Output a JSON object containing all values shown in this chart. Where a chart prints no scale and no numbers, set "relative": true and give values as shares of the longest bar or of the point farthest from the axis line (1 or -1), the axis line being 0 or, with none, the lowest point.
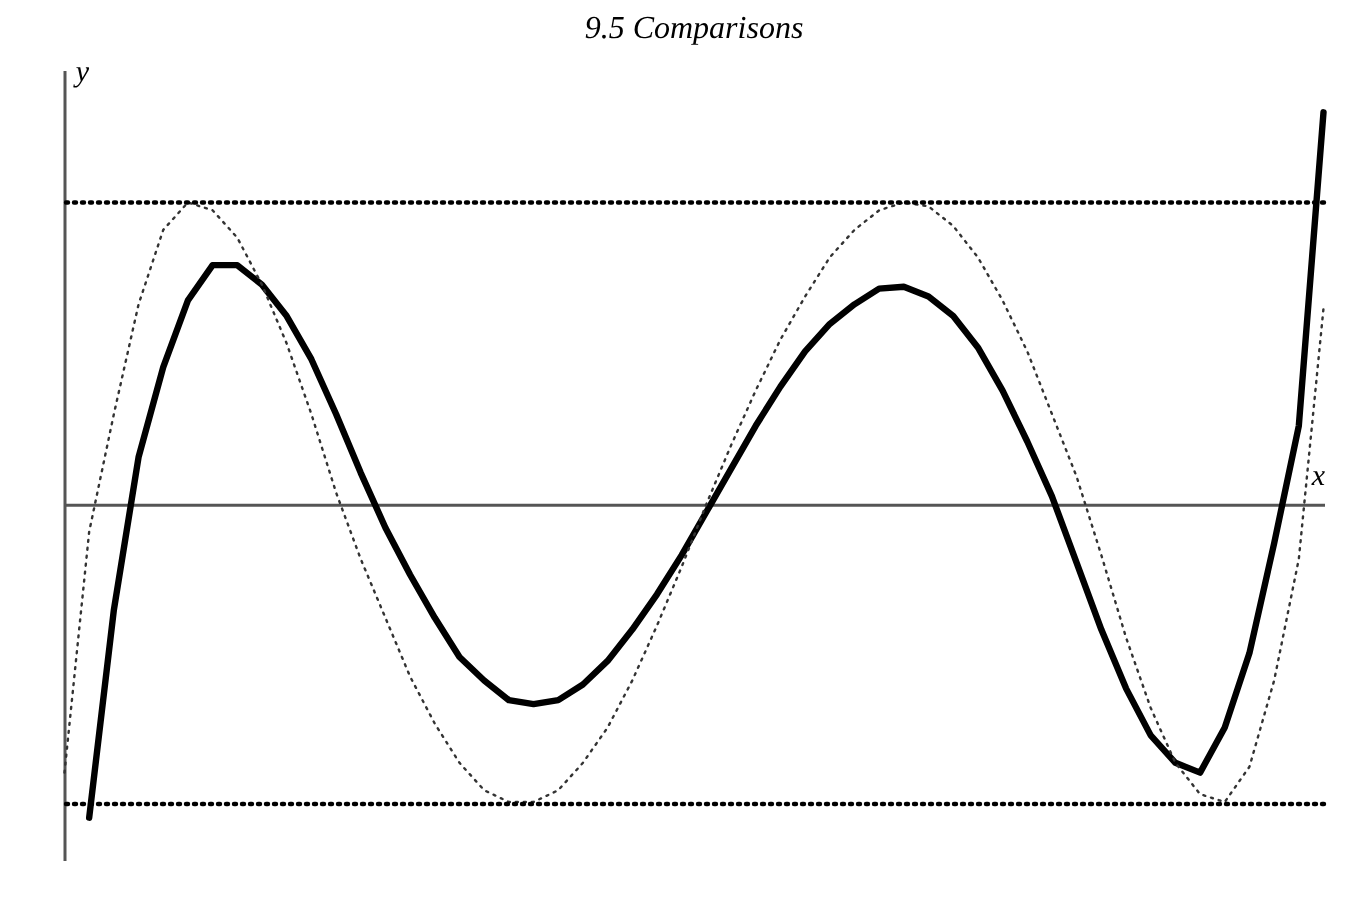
{
  "chart_data": {
    "type": "line",
    "title": "9.5 Comparisons",
    "xlabel": "x",
    "ylabel": "y",
    "relative": true,
    "grid": false,
    "marker": "none",
    "categories": [
      null,
      null,
      null,
      null,
      null,
      null,
      null,
      null,
      null,
      null,
      null,
      null,
      null,
      null,
      null,
      null,
      null,
      null,
      null,
      null,
      null,
      null,
      null,
      null,
      null,
      null,
      null,
      null,
      null,
      null,
      null,
      null,
      null,
      null,
      null,
      null,
      null,
      null,
      null,
      null,
      null,
      null,
      null,
      null,
      null,
      null,
      null,
      null,
      null,
      null,
      null,
      null
    ],
    "series": [
      {
        "color": "#000000",
        "line_style": "solid",
        "values": [
          null,
          -0.8,
          -0.27,
          0.12,
          0.35,
          0.52,
          0.61,
          0.61,
          0.56,
          0.48,
          0.37,
          0.23,
          0.08,
          -0.06,
          -0.18,
          -0.29,
          -0.39,
          -0.45,
          -0.5,
          -0.51,
          -0.5,
          -0.46,
          -0.4,
          -0.32,
          -0.23,
          -0.13,
          -0.02,
          0.09,
          0.2,
          0.3,
          0.39,
          0.46,
          0.51,
          0.55,
          0.555,
          0.53,
          0.48,
          0.4,
          0.29,
          0.16,
          0.02,
          -0.15,
          -0.32,
          -0.47,
          -0.59,
          -0.66,
          -0.685,
          -0.57,
          -0.38,
          -0.1,
          0.2,
          1.0
        ]
      },
      {
        "color": "#333333",
        "line_style": "dotted",
        "values": [
          -0.685,
          -0.07,
          0.23,
          0.51,
          0.7,
          0.77,
          0.75,
          0.68,
          0.56,
          0.41,
          0.23,
          0.03,
          -0.14,
          -0.29,
          -0.44,
          -0.56,
          -0.66,
          -0.73,
          -0.76,
          -0.76,
          -0.73,
          -0.66,
          -0.57,
          -0.45,
          -0.31,
          -0.16,
          0,
          0.15,
          0.29,
          0.42,
          0.53,
          0.63,
          0.7,
          0.75,
          0.77,
          0.76,
          0.71,
          0.63,
          0.52,
          0.39,
          0.23,
          0.07,
          -0.13,
          -0.34,
          -0.52,
          -0.66,
          -0.74,
          -0.76,
          -0.67,
          -0.45,
          -0.14,
          0.5
        ]
      }
    ],
    "ref_lines": [
      {
        "axis": "y",
        "value": 0.77,
        "color": "#000000",
        "line_style": "dotted"
      },
      {
        "axis": "y",
        "value": -0.765,
        "color": "#000000",
        "line_style": "dotted"
      }
    ]
  }
}
